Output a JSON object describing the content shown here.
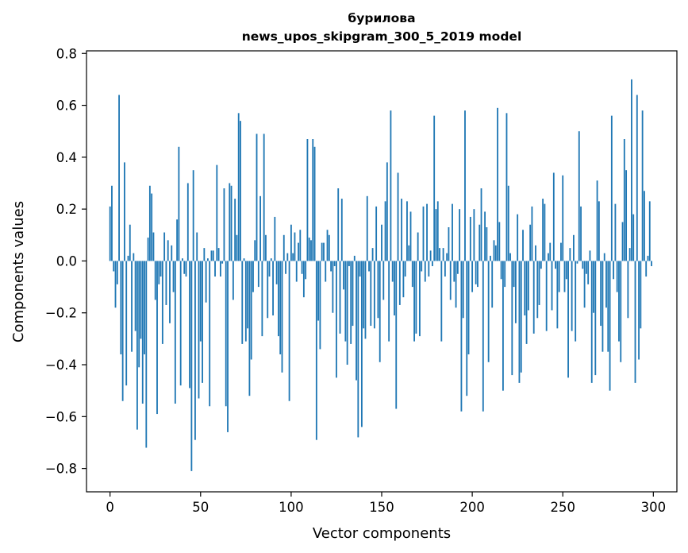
{
  "chart_data": {
    "type": "bar",
    "title": "бурилова",
    "subtitle": "news_upos_skipgram_300_5_2019 model",
    "xlabel": "Vector components",
    "ylabel": "Components values",
    "xlim": [
      -13,
      313
    ],
    "ylim": [
      -0.89,
      0.81
    ],
    "x_ticks": [
      0,
      50,
      100,
      150,
      200,
      250,
      300
    ],
    "y_ticks": [
      -0.8,
      -0.6,
      -0.4,
      -0.2,
      0.0,
      0.2,
      0.4,
      0.6,
      0.8
    ],
    "y_tick_labels": [
      "−0.8",
      "−0.6",
      "−0.4",
      "−0.2",
      "0.0",
      "0.2",
      "0.4",
      "0.6",
      "0.8"
    ],
    "grid": false,
    "bar_color": "#1f77b4",
    "x": "0..299",
    "values": [
      0.21,
      0.29,
      -0.04,
      -0.18,
      -0.09,
      0.64,
      -0.36,
      -0.54,
      0.38,
      -0.48,
      0.02,
      0.14,
      -0.35,
      0.03,
      -0.27,
      -0.65,
      -0.41,
      -0.3,
      -0.55,
      -0.36,
      -0.72,
      0.09,
      0.29,
      0.26,
      0.11,
      -0.15,
      -0.59,
      -0.09,
      -0.06,
      -0.32,
      0.11,
      -0.17,
      0.08,
      -0.24,
      0.06,
      -0.12,
      -0.55,
      0.16,
      0.44,
      -0.48,
      0.01,
      -0.05,
      -0.06,
      0.3,
      -0.49,
      -0.81,
      0.35,
      -0.69,
      0.11,
      -0.53,
      -0.31,
      -0.47,
      0.05,
      -0.16,
      0.01,
      -0.56,
      0.04,
      0.04,
      -0.06,
      0.37,
      0.05,
      -0.06,
      -0.01,
      0.28,
      -0.56,
      -0.66,
      0.3,
      0.29,
      -0.15,
      0.24,
      0.1,
      0.57,
      0.54,
      -0.32,
      0.01,
      -0.31,
      -0.26,
      -0.52,
      -0.38,
      -0.12,
      0.08,
      0.49,
      -0.1,
      0.25,
      -0.29,
      0.49,
      0.1,
      -0.22,
      -0.06,
      0.01,
      -0.21,
      0.17,
      -0.09,
      -0.29,
      -0.36,
      -0.43,
      0.1,
      -0.05,
      0.03,
      -0.54,
      0.14,
      0.03,
      0.11,
      -0.08,
      0.07,
      0.12,
      -0.05,
      -0.14,
      -0.07,
      0.47,
      0.09,
      0.08,
      0.47,
      0.44,
      -0.69,
      -0.23,
      -0.34,
      0.07,
      0.07,
      -0.08,
      0.12,
      0.1,
      -0.04,
      -0.2,
      -0.02,
      -0.45,
      0.28,
      -0.28,
      0.24,
      -0.11,
      -0.31,
      -0.4,
      -0.02,
      -0.32,
      -0.25,
      0.02,
      -0.46,
      -0.68,
      -0.06,
      -0.64,
      -0.26,
      -0.3,
      0.25,
      -0.04,
      -0.25,
      0.05,
      -0.26,
      0.21,
      -0.22,
      -0.39,
      0.14,
      -0.15,
      0.23,
      0.38,
      -0.31,
      0.58,
      -0.08,
      -0.21,
      -0.57,
      0.34,
      -0.17,
      0.24,
      -0.14,
      -0.06,
      0.23,
      0.06,
      0.19,
      -0.1,
      -0.31,
      -0.28,
      0.11,
      -0.29,
      -0.04,
      0.21,
      -0.08,
      0.22,
      -0.06,
      0.04,
      -0.02,
      0.56,
      0.2,
      0.23,
      0.05,
      -0.31,
      0.05,
      -0.06,
      0.03,
      0.13,
      -0.15,
      0.22,
      -0.08,
      -0.18,
      -0.05,
      0.2,
      -0.58,
      -0.22,
      0.58,
      -0.52,
      -0.36,
      0.17,
      -0.12,
      0.2,
      -0.09,
      -0.1,
      0.14,
      0.28,
      -0.58,
      0.19,
      0.13,
      -0.39,
      0.02,
      -0.18,
      0.08,
      0.06,
      0.59,
      0.15,
      -0.07,
      -0.5,
      -0.1,
      0.57,
      0.29,
      0.03,
      -0.44,
      -0.1,
      -0.24,
      0.18,
      -0.47,
      -0.43,
      0.12,
      -0.21,
      -0.32,
      -0.19,
      0.14,
      0.21,
      -0.28,
      0.06,
      -0.22,
      -0.17,
      -0.03,
      0.24,
      0.22,
      -0.27,
      0.03,
      0.07,
      -0.19,
      0.34,
      -0.03,
      -0.26,
      -0.12,
      0.07,
      0.33,
      -0.12,
      -0.07,
      -0.45,
      0.05,
      -0.27,
      0.1,
      -0.31,
      -0.01,
      0.5,
      0.21,
      -0.03,
      -0.18,
      -0.05,
      -0.09,
      0.04,
      -0.47,
      -0.2,
      -0.44,
      0.31,
      0.23,
      -0.25,
      -0.35,
      0.03,
      -0.18,
      -0.35,
      -0.5,
      0.56,
      -0.07,
      0.22,
      -0.12,
      -0.31,
      -0.39,
      0.15,
      0.47,
      0.35,
      -0.22,
      0.05,
      0.7,
      0.18,
      -0.47,
      0.64,
      -0.38,
      -0.26,
      0.58,
      0.27,
      -0.06,
      0.02,
      0.23,
      -0.02
    ]
  }
}
